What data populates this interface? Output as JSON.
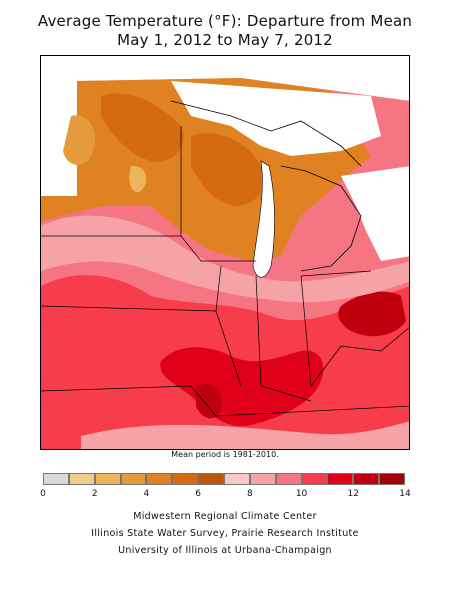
{
  "title": {
    "line1": "Average Temperature (°F): Departure from Mean",
    "line2": "May 1, 2012 to May 7, 2012"
  },
  "note": "Mean period is 1981-2010.",
  "legend": {
    "ticks": [
      "0",
      "2",
      "4",
      "6",
      "8",
      "10",
      "12",
      "14"
    ],
    "colors": [
      "#d9d9d9",
      "#efcf87",
      "#ebb55c",
      "#e59a3e",
      "#e08221",
      "#d46b10",
      "#bd5608",
      "#f9c7c9",
      "#f6a3a8",
      "#f57682",
      "#f73d4b",
      "#e0001a",
      "#bf000f",
      "#a50007"
    ]
  },
  "credits": {
    "line1": "Midwestern Regional Climate Center",
    "line2": "Illinois State Water Survey, Prairie Research Institute",
    "line3": "University of Illinois at Urbana-Champaign"
  }
}
